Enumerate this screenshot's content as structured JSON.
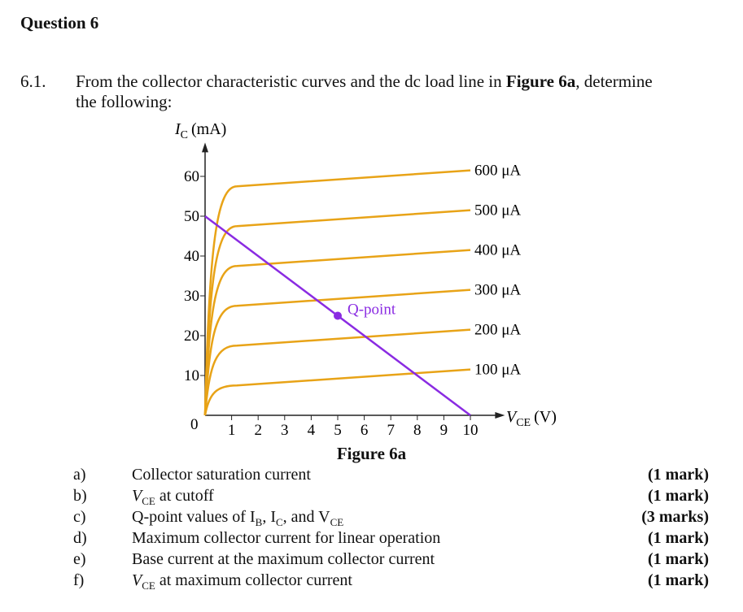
{
  "title": "Question 6",
  "question": {
    "number": "6.1.",
    "intro_line1_pre": "From the collector characteristic curves and the dc load line in ",
    "intro_line1_bold": "Figure 6a",
    "intro_line1_post": ", determine",
    "intro_line2": "the following:"
  },
  "figure_caption": "Figure 6a",
  "items": [
    {
      "letter": "a)",
      "text": "Collector saturation current",
      "marks": "(1 mark)"
    },
    {
      "letter": "b)",
      "text_italic": "V",
      "text_sub": "CE",
      "text": " at cutoff",
      "marks": "(1 mark)"
    },
    {
      "letter": "c)",
      "text": "Q-point values of I",
      "sub1": "B",
      "mid1": ", I",
      "sub2": "C",
      "mid2": ", and V",
      "sub3": "CE",
      "marks": "(3 marks)"
    },
    {
      "letter": "d)",
      "text": "Maximum collector current for linear operation",
      "marks": "(1 mark)"
    },
    {
      "letter": "e)",
      "text": "Base current at the maximum collector current",
      "marks": "(1 mark)"
    },
    {
      "letter": "f)",
      "text_italic": "V",
      "text_sub": "CE",
      "text": " at maximum collector current",
      "marks": "(1 mark)"
    }
  ],
  "chart_data": {
    "type": "line",
    "ylabel": "I_C (mA)",
    "ylabel_main": "I",
    "ylabel_sub": "C",
    "ylabel_unit": "(mA)",
    "xlabel_main": "V",
    "xlabel_sub": "CE",
    "xlabel_unit": "(V)",
    "xlim": [
      0,
      10
    ],
    "ylim": [
      0,
      65
    ],
    "x_ticks": [
      "1",
      "2",
      "3",
      "4",
      "5",
      "6",
      "7",
      "8",
      "9",
      "10"
    ],
    "y_ticks": [
      "10",
      "20",
      "30",
      "40",
      "50",
      "60"
    ],
    "origin_label": "0",
    "curve_color": "#E8A317",
    "load_line_color": "#8A2BE2",
    "series": [
      {
        "name": "100 µA",
        "label": "100 μA",
        "knee": [
          1.2,
          7.5
        ],
        "end": [
          10,
          11.5
        ]
      },
      {
        "name": "200 µA",
        "label": "200 μA",
        "knee": [
          1.2,
          17.5
        ],
        "end": [
          10,
          21.5
        ]
      },
      {
        "name": "300 µA",
        "label": "300 μA",
        "knee": [
          1.2,
          27.5
        ],
        "end": [
          10,
          31.5
        ]
      },
      {
        "name": "400 µA",
        "label": "400 μA",
        "knee": [
          1.2,
          37.5
        ],
        "end": [
          10,
          41.5
        ]
      },
      {
        "name": "500 µA",
        "label": "500 μA",
        "knee": [
          1.2,
          47.5
        ],
        "end": [
          10,
          51.5
        ]
      },
      {
        "name": "600 µA",
        "label": "600 μA",
        "knee": [
          1.2,
          57.5
        ],
        "end": [
          10,
          61.5
        ]
      }
    ],
    "load_line": {
      "start": [
        0,
        50
      ],
      "end": [
        10,
        0
      ]
    },
    "q_point": {
      "label": "Q-point",
      "x": 5,
      "y": 25
    }
  }
}
